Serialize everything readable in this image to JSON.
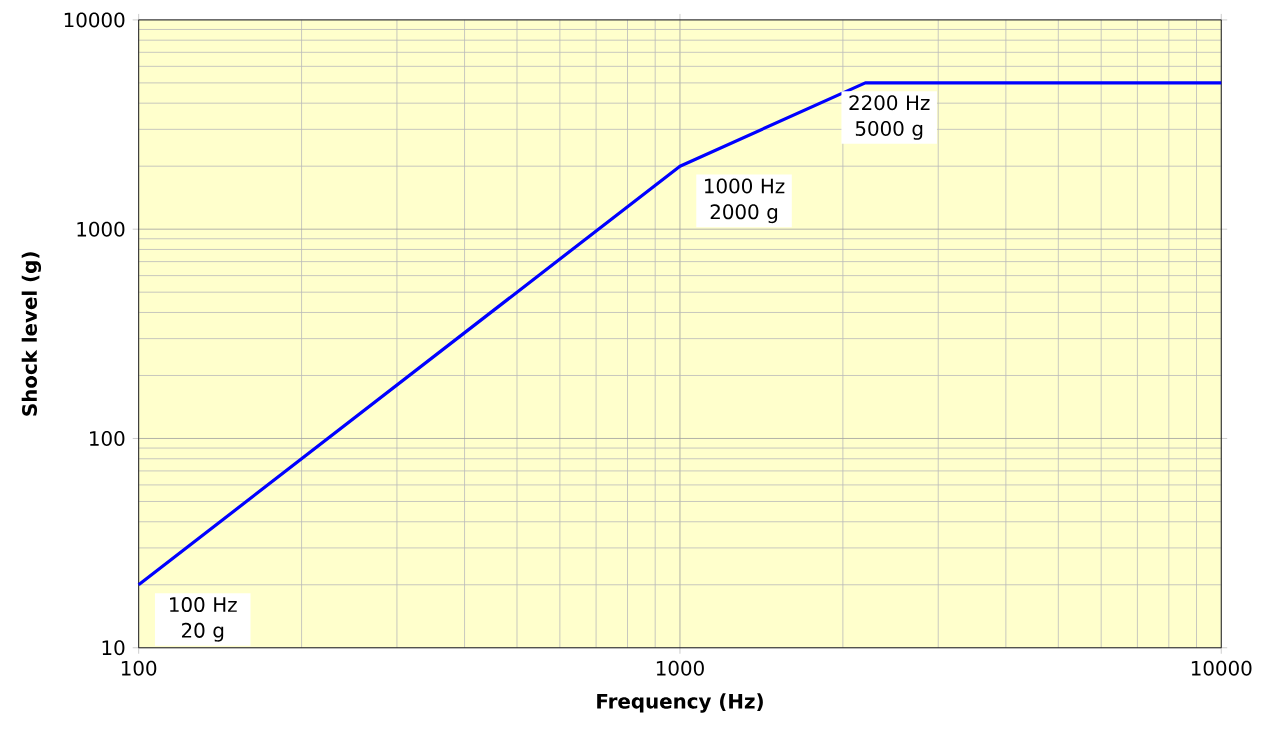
{
  "chart_data": {
    "type": "line",
    "xlabel": "Frequency (Hz)",
    "ylabel": "Shock level (g)",
    "log": "xy",
    "grid": true,
    "x": [
      100,
      1000,
      2200,
      10000
    ],
    "series": [
      {
        "color": "#0000ff",
        "values": [
          20,
          2000,
          5000,
          5000
        ]
      }
    ],
    "xlim": [
      100,
      10000
    ],
    "ylim": [
      10,
      10000
    ],
    "xticks": [
      100,
      1000,
      10000
    ],
    "yticks": [
      10,
      100,
      1000,
      10000
    ],
    "annotations": [
      {
        "text": "100 Hz 20 g",
        "x": 100,
        "y": 20
      },
      {
        "text": "1000 Hz 2000 g",
        "x": 1000,
        "y": 2000
      },
      {
        "text": "2200 Hz 5000 g",
        "x": 2200,
        "y": 5000
      }
    ]
  }
}
